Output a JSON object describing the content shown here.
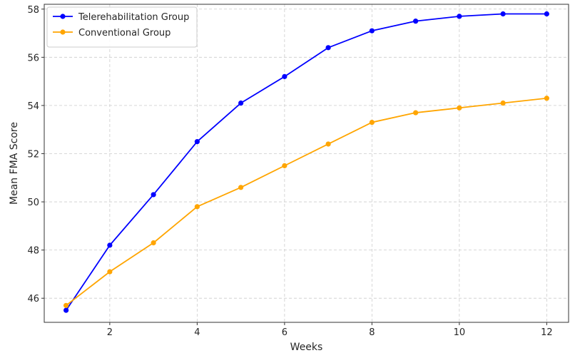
{
  "chart_data": {
    "type": "line",
    "title": "",
    "xlabel": "Weeks",
    "ylabel": "Mean FMA Score",
    "x": [
      1,
      2,
      3,
      4,
      5,
      6,
      7,
      8,
      9,
      10,
      11,
      12
    ],
    "xlim": [
      0.5,
      12.5
    ],
    "ylim": [
      45.0,
      58.2
    ],
    "xticks": [
      2,
      4,
      6,
      8,
      10,
      12
    ],
    "yticks": [
      46,
      48,
      50,
      52,
      54,
      56,
      58
    ],
    "grid": true,
    "legend_position": "top-left",
    "series": [
      {
        "name": "Telerehabilitation Group",
        "color": "#0000ff",
        "marker": "circle",
        "values": [
          45.5,
          48.2,
          50.3,
          52.5,
          54.1,
          55.2,
          56.4,
          57.1,
          57.5,
          57.7,
          57.8,
          57.8
        ]
      },
      {
        "name": "Conventional Group",
        "color": "#ffa500",
        "marker": "circle",
        "values": [
          45.7,
          47.1,
          48.3,
          49.8,
          50.6,
          51.5,
          52.4,
          53.3,
          53.7,
          53.9,
          54.1,
          54.3
        ]
      }
    ]
  }
}
